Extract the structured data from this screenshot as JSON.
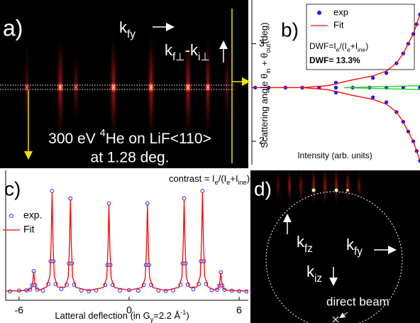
{
  "panels": {
    "a": {
      "label": "a)",
      "kfy": [
        {
          "text": "k"
        },
        {
          "sub": "fy"
        }
      ],
      "kperp": [
        {
          "text": "k"
        },
        {
          "sub": "f⊥"
        },
        {
          "text": "-k"
        },
        {
          "sub": "i⊥"
        }
      ],
      "line1": [
        {
          "text": "300 eV "
        },
        {
          "sup": "4"
        },
        {
          "text": "He on LiF<110>"
        }
      ],
      "line2": "at 1.28 deg."
    },
    "d": {
      "label": "d)",
      "kfz": [
        {
          "text": "k"
        },
        {
          "sub": "fz"
        }
      ],
      "kfy": [
        {
          "text": "k"
        },
        {
          "sub": "fy"
        }
      ],
      "kiz": [
        {
          "text": "k"
        },
        {
          "sub": "iz"
        }
      ],
      "direct": "direct beam"
    }
  },
  "chart_data": [
    {
      "type": "scatter",
      "panel_label": "b)",
      "ylabel": [
        {
          "text": "Scattering angle θ"
        },
        {
          "sub": "in"
        },
        {
          "text": " + θ"
        },
        {
          "sub": "out"
        },
        {
          "text": "(deg)"
        }
      ],
      "xlabel": "Intensity (arb. units)",
      "xlim": [
        0,
        1
      ],
      "ylim": [
        1.76,
        3.39
      ],
      "yticks": [
        2,
        3
      ],
      "annotations": [
        [
          {
            "text": "DWF=I"
          },
          {
            "sub": "e"
          },
          {
            "text": "/(I"
          },
          {
            "sub": "e"
          },
          {
            "text": "+I"
          },
          {
            "sub": "ine"
          },
          {
            "text": ")"
          }
        ],
        "DWF= 13.3%"
      ],
      "series": [
        {
          "name": "exp",
          "color": "#1a1aff",
          "mode": "markers",
          "x": [
            0.02,
            0.1,
            0.2,
            0.3,
            0.4,
            0.5,
            0.6,
            0.7,
            0.8,
            0.9,
            1.0,
            0.5,
            0.72,
            0.8,
            0.86,
            0.9,
            0.93,
            0.96,
            0.98,
            1.0,
            0.5,
            0.72,
            0.8,
            0.86,
            0.9,
            0.93,
            0.96,
            0.98,
            1.0
          ],
          "y": [
            2.55,
            2.55,
            2.55,
            2.55,
            2.55,
            2.55,
            2.55,
            2.55,
            2.55,
            2.55,
            2.55,
            2.6,
            2.65,
            2.7,
            2.8,
            2.9,
            3.0,
            3.1,
            3.2,
            3.3,
            2.5,
            2.45,
            2.4,
            2.3,
            2.2,
            2.1,
            2.0,
            1.9,
            1.8
          ]
        },
        {
          "name": "Fit",
          "color": "#ff0000",
          "mode": "line",
          "x": [
            0,
            0.3,
            0.45,
            0.6,
            0.72,
            0.8,
            0.86,
            0.9,
            0.93,
            0.96,
            0.98,
            1.0,
            null,
            0.3,
            0.45,
            0.6,
            0.72,
            0.8,
            0.86,
            0.9,
            0.93,
            0.96,
            0.98,
            1.0
          ],
          "y": [
            2.55,
            2.55,
            2.57,
            2.63,
            2.67,
            2.72,
            2.8,
            2.9,
            3.0,
            3.1,
            3.2,
            3.3,
            null,
            2.55,
            2.53,
            2.47,
            2.43,
            2.38,
            2.3,
            2.2,
            2.1,
            2.0,
            1.9,
            1.8
          ]
        },
        {
          "color": "#22cc22",
          "mode": "line",
          "x": [
            0.55,
            1.0
          ],
          "y": [
            2.55,
            2.57
          ]
        },
        {
          "color": "#22cc22",
          "mode": "line",
          "x": [
            0.55,
            1.0
          ],
          "y": [
            2.55,
            2.53
          ]
        }
      ]
    },
    {
      "type": "line",
      "panel_label": "c)",
      "annotation": [
        {
          "text": "contrast = I"
        },
        {
          "sub": "e"
        },
        {
          "text": "/(I"
        },
        {
          "sub": "e"
        },
        {
          "text": "+I"
        },
        {
          "sub": "ine"
        },
        {
          "text": ")=73%"
        }
      ],
      "xlabel": [
        {
          "text": "Latteral deflection (in G"
        },
        {
          "sub": "y"
        },
        {
          "text": "=2.2 Å"
        },
        {
          "sup": "-1"
        },
        {
          "text": ")"
        }
      ],
      "xlim": [
        -6.73,
        6.5
      ],
      "ylim": [
        0,
        1
      ],
      "xticks": [
        -6,
        0,
        6
      ],
      "series": [
        {
          "name": "exp.",
          "color": "#2222ff",
          "mode": "markers",
          "x": [
            -6.5,
            -6.0,
            -5.6,
            -5.4,
            -5.28,
            -5.2,
            -5.12,
            -5.0,
            -4.7,
            -4.4,
            -4.28,
            -4.2,
            -4.12,
            -4.0,
            -3.7,
            -3.4,
            -3.28,
            -3.2,
            -3.12,
            -3.0,
            -2.6,
            -2.2,
            -1.8,
            -1.3,
            -1.18,
            -1.1,
            -1.02,
            -0.9,
            -0.5,
            0,
            0.5,
            0.8,
            0.92,
            1.0,
            1.08,
            1.2,
            1.6,
            2.0,
            2.4,
            2.8,
            2.92,
            3.0,
            3.08,
            3.2,
            3.5,
            3.8,
            3.92,
            4.0,
            4.08,
            4.2,
            4.5,
            4.8,
            4.92,
            5.0,
            5.08,
            5.2,
            5.6,
            6.0,
            6.4
          ],
          "y": [
            0.072,
            0.078,
            0.08,
            0.086,
            0.122,
            0.235,
            0.122,
            0.086,
            0.079,
            0.131,
            0.314,
            0.88,
            0.314,
            0.131,
            0.09,
            0.126,
            0.296,
            0.82,
            0.296,
            0.126,
            0.079,
            0.074,
            0.08,
            0.124,
            0.284,
            0.78,
            0.284,
            0.124,
            0.078,
            0.082,
            0.077,
            0.124,
            0.284,
            0.78,
            0.284,
            0.124,
            0.079,
            0.076,
            0.08,
            0.126,
            0.296,
            0.82,
            0.296,
            0.126,
            0.088,
            0.131,
            0.314,
            0.88,
            0.314,
            0.131,
            0.082,
            0.085,
            0.119,
            0.225,
            0.119,
            0.085,
            0.077,
            0.074,
            0.071
          ]
        },
        {
          "name": "Fit",
          "color": "#ff0000",
          "mode": "line",
          "x": [
            -6.7,
            -6.0,
            -5.5,
            -5.32,
            -5.25,
            -5.2,
            -5.15,
            -5.08,
            -4.9,
            -4.5,
            -4.32,
            -4.25,
            -4.2,
            -4.15,
            -4.08,
            -3.9,
            -3.5,
            -3.32,
            -3.25,
            -3.2,
            -3.15,
            -3.08,
            -2.9,
            -2.2,
            -1.4,
            -1.22,
            -1.15,
            -1.1,
            -1.05,
            -0.98,
            -0.8,
            0,
            0.7,
            0.88,
            0.95,
            1.0,
            1.05,
            1.12,
            1.3,
            2.0,
            2.7,
            2.88,
            2.95,
            3.0,
            3.05,
            3.12,
            3.3,
            3.7,
            3.88,
            3.95,
            4.0,
            4.05,
            4.12,
            4.3,
            4.7,
            4.88,
            4.95,
            5.0,
            5.05,
            5.12,
            5.3,
            6.0,
            6.5
          ],
          "y": [
            0.075,
            0.076,
            0.081,
            0.098,
            0.153,
            0.23,
            0.153,
            0.098,
            0.081,
            0.107,
            0.194,
            0.473,
            0.87,
            0.473,
            0.194,
            0.107,
            0.104,
            0.185,
            0.443,
            0.81,
            0.443,
            0.185,
            0.104,
            0.078,
            0.103,
            0.179,
            0.423,
            0.77,
            0.423,
            0.179,
            0.103,
            0.08,
            0.103,
            0.179,
            0.423,
            0.77,
            0.423,
            0.179,
            0.103,
            0.078,
            0.104,
            0.185,
            0.443,
            0.81,
            0.443,
            0.185,
            0.104,
            0.107,
            0.194,
            0.473,
            0.87,
            0.473,
            0.194,
            0.107,
            0.081,
            0.097,
            0.148,
            0.22,
            0.148,
            0.097,
            0.081,
            0.076,
            0.075
          ]
        }
      ]
    }
  ]
}
